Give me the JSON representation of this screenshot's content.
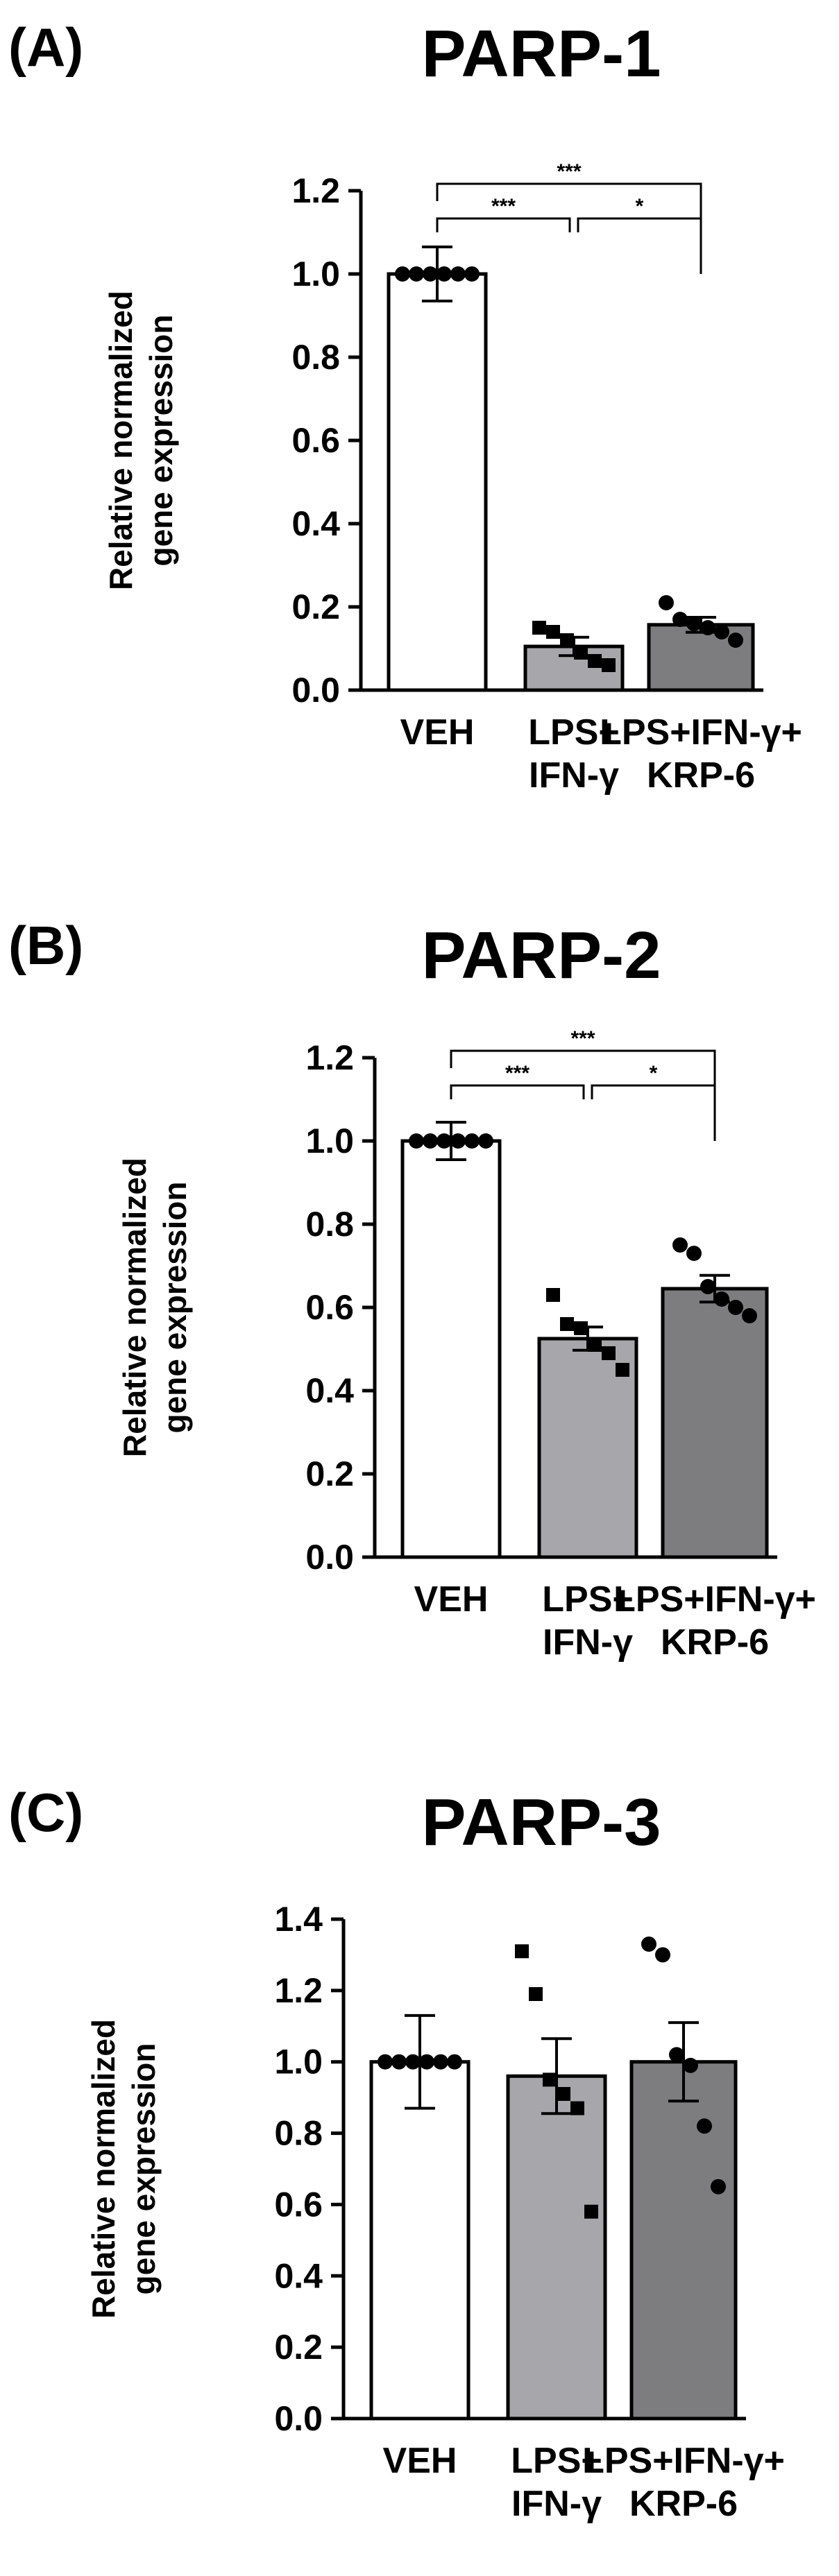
{
  "chart_data": [
    {
      "type": "bar",
      "panel": "(A)",
      "title": "PARP-1",
      "ylabel_lines": [
        "Relative normalized",
        "gene expression"
      ],
      "ylim": [
        0,
        1.2
      ],
      "yticks": [
        "0.0",
        "0.2",
        "0.4",
        "0.6",
        "0.8",
        "1.0",
        "1.2"
      ],
      "categories": [
        [
          "VEH"
        ],
        [
          "LPS+",
          "IFN-γ"
        ],
        [
          "LPS+IFN-γ+",
          "KRP-6"
        ]
      ],
      "values": [
        1.0,
        0.105,
        0.157
      ],
      "errors": [
        0.065,
        0.022,
        0.018
      ],
      "bar_colors": [
        "#ffffff",
        "#a7a7ab",
        "#7d7d80"
      ],
      "marker_shapes": [
        "circle",
        "square",
        "circle"
      ],
      "points": [
        [
          1.0,
          1.0,
          1.0,
          1.0,
          1.0,
          1.0
        ],
        [
          0.15,
          0.14,
          0.12,
          0.09,
          0.07,
          0.06
        ],
        [
          0.21,
          0.17,
          0.16,
          0.15,
          0.14,
          0.12
        ]
      ],
      "significance": [
        {
          "from": 0,
          "to": 2,
          "level": 2,
          "label": "***"
        },
        {
          "from": 0,
          "to": 1,
          "level": 1,
          "label": "***"
        },
        {
          "from": 1,
          "to": 2,
          "level": 1,
          "label": "*"
        }
      ]
    },
    {
      "type": "bar",
      "panel": "(B)",
      "title": "PARP-2",
      "ylabel_lines": [
        "Relative normalized",
        "gene expression"
      ],
      "ylim": [
        0,
        1.2
      ],
      "yticks": [
        "0.0",
        "0.2",
        "0.4",
        "0.6",
        "0.8",
        "1.0",
        "1.2"
      ],
      "categories": [
        [
          "VEH"
        ],
        [
          "LPS+",
          "IFN-γ"
        ],
        [
          "LPS+IFN-γ+",
          "KRP-6"
        ]
      ],
      "values": [
        1.0,
        0.525,
        0.645
      ],
      "errors": [
        0.045,
        0.028,
        0.032
      ],
      "bar_colors": [
        "#ffffff",
        "#a7a7ab",
        "#7d7d80"
      ],
      "marker_shapes": [
        "circle",
        "square",
        "circle"
      ],
      "points": [
        [
          1.0,
          1.0,
          1.0,
          1.0,
          1.0,
          1.0
        ],
        [
          0.63,
          0.56,
          0.55,
          0.51,
          0.49,
          0.45
        ],
        [
          0.75,
          0.73,
          0.65,
          0.62,
          0.6,
          0.58
        ]
      ],
      "significance": [
        {
          "from": 0,
          "to": 2,
          "level": 2,
          "label": "***"
        },
        {
          "from": 0,
          "to": 1,
          "level": 1,
          "label": "***"
        },
        {
          "from": 1,
          "to": 2,
          "level": 1,
          "label": "*"
        }
      ]
    },
    {
      "type": "bar",
      "panel": "(C)",
      "title": "PARP-3",
      "ylabel_lines": [
        "Relative normalized",
        "gene expression"
      ],
      "ylim": [
        0,
        1.4
      ],
      "yticks": [
        "0.0",
        "0.2",
        "0.4",
        "0.6",
        "0.8",
        "1.0",
        "1.2",
        "1.4"
      ],
      "categories": [
        [
          "VEH"
        ],
        [
          "LPS+",
          "IFN-γ"
        ],
        [
          "LPS+IFN-γ+",
          "KRP-6"
        ]
      ],
      "values": [
        1.0,
        0.96,
        1.0
      ],
      "errors": [
        0.13,
        0.105,
        0.11
      ],
      "bar_colors": [
        "#ffffff",
        "#a7a7ab",
        "#7d7d80"
      ],
      "marker_shapes": [
        "circle",
        "square",
        "circle"
      ],
      "points": [
        [
          1.0,
          1.0,
          1.0,
          1.0,
          1.0,
          1.0
        ],
        [
          1.31,
          1.19,
          0.95,
          0.91,
          0.87,
          0.58
        ],
        [
          1.33,
          1.3,
          1.02,
          0.99,
          0.82,
          0.65
        ]
      ],
      "significance": []
    }
  ]
}
